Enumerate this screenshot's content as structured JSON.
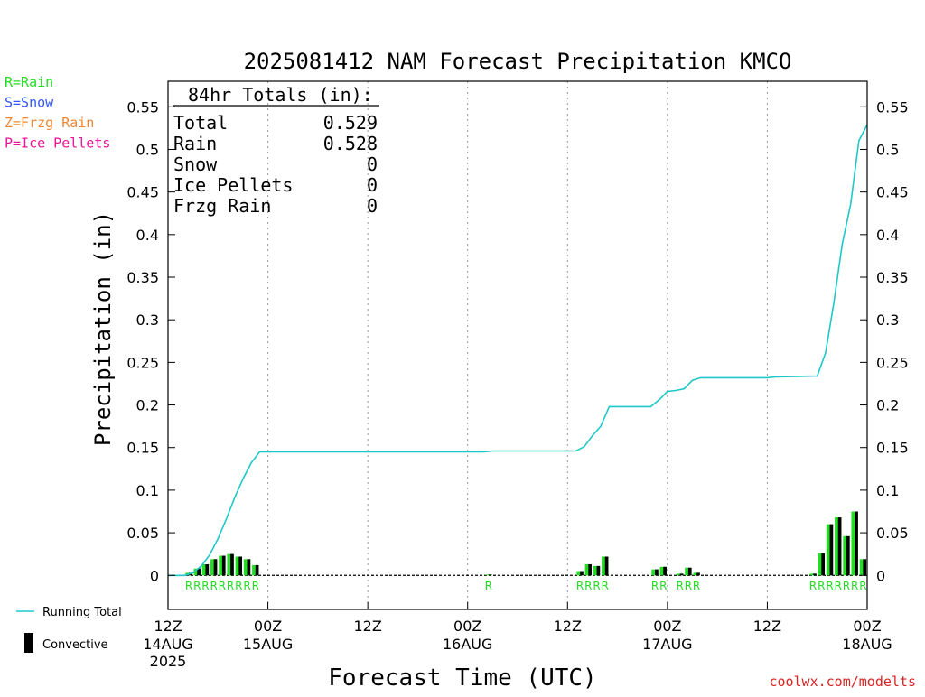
{
  "chart_data": {
    "type": "bar",
    "title": "2025081412 NAM Forecast Precipitation KMCO",
    "xlabel": "Forecast Time (UTC)",
    "ylabel": "Precipitation (in)",
    "ylim": [
      -0.04,
      0.58
    ],
    "y_ticks": [
      0,
      0.05,
      0.1,
      0.15,
      0.2,
      0.25,
      0.3,
      0.35,
      0.4,
      0.45,
      0.5,
      0.55
    ],
    "y_tick_labels": [
      "0",
      "0.05",
      "0.1",
      "0.15",
      "0.2",
      "0.25",
      "0.3",
      "0.35",
      "0.4",
      "0.45",
      "0.5",
      "0.55"
    ],
    "xlim_hours": [
      0,
      84
    ],
    "x_ticks": [
      {
        "hour": 0,
        "label": "12Z",
        "date": "14AUG",
        "year": "2025"
      },
      {
        "hour": 12,
        "label": "00Z",
        "date": "15AUG",
        "year": ""
      },
      {
        "hour": 24,
        "label": "12Z",
        "date": "",
        "year": ""
      },
      {
        "hour": 36,
        "label": "00Z",
        "date": "16AUG",
        "year": ""
      },
      {
        "hour": 48,
        "label": "12Z",
        "date": "",
        "year": ""
      },
      {
        "hour": 60,
        "label": "00Z",
        "date": "17AUG",
        "year": ""
      },
      {
        "hour": 72,
        "label": "12Z",
        "date": "",
        "year": ""
      },
      {
        "hour": 84,
        "label": "00Z",
        "date": "18AUG",
        "year": ""
      }
    ],
    "grid": "dotted vertical at tick hours",
    "bar_width_hours": 0.8,
    "hourly_precip": [
      {
        "hour": 3,
        "value": 0.003
      },
      {
        "hour": 4,
        "value": 0.008
      },
      {
        "hour": 5,
        "value": 0.013
      },
      {
        "hour": 6,
        "value": 0.019
      },
      {
        "hour": 7,
        "value": 0.023
      },
      {
        "hour": 8,
        "value": 0.025
      },
      {
        "hour": 9,
        "value": 0.022
      },
      {
        "hour": 10,
        "value": 0.019
      },
      {
        "hour": 11,
        "value": 0.012
      },
      {
        "hour": 39,
        "value": 0.001
      },
      {
        "hour": 50,
        "value": 0.005
      },
      {
        "hour": 51,
        "value": 0.013
      },
      {
        "hour": 52,
        "value": 0.011
      },
      {
        "hour": 53,
        "value": 0.022
      },
      {
        "hour": 59,
        "value": 0.007
      },
      {
        "hour": 60,
        "value": 0.01
      },
      {
        "hour": 62,
        "value": 0.002
      },
      {
        "hour": 63,
        "value": 0.009
      },
      {
        "hour": 64,
        "value": 0.003
      },
      {
        "hour": 78,
        "value": 0.002
      },
      {
        "hour": 79,
        "value": 0.026
      },
      {
        "hour": 80,
        "value": 0.06
      },
      {
        "hour": 81,
        "value": 0.068
      },
      {
        "hour": 82,
        "value": 0.046
      },
      {
        "hour": 83,
        "value": 0.075
      },
      {
        "hour": 84,
        "value": 0.019
      }
    ],
    "running_total": [
      {
        "hour": 0,
        "value": 0
      },
      {
        "hour": 2,
        "value": 0
      },
      {
        "hour": 3,
        "value": 0.003
      },
      {
        "hour": 4,
        "value": 0.011
      },
      {
        "hour": 5,
        "value": 0.024
      },
      {
        "hour": 6,
        "value": 0.043
      },
      {
        "hour": 7,
        "value": 0.066
      },
      {
        "hour": 8,
        "value": 0.091
      },
      {
        "hour": 9,
        "value": 0.113
      },
      {
        "hour": 10,
        "value": 0.132
      },
      {
        "hour": 11,
        "value": 0.145
      },
      {
        "hour": 38,
        "value": 0.145
      },
      {
        "hour": 39,
        "value": 0.146
      },
      {
        "hour": 49,
        "value": 0.146
      },
      {
        "hour": 50,
        "value": 0.151
      },
      {
        "hour": 51,
        "value": 0.164
      },
      {
        "hour": 52,
        "value": 0.175
      },
      {
        "hour": 53,
        "value": 0.198
      },
      {
        "hour": 58,
        "value": 0.198
      },
      {
        "hour": 59,
        "value": 0.206
      },
      {
        "hour": 60,
        "value": 0.216
      },
      {
        "hour": 61,
        "value": 0.217
      },
      {
        "hour": 62,
        "value": 0.219
      },
      {
        "hour": 63,
        "value": 0.229
      },
      {
        "hour": 64,
        "value": 0.232
      },
      {
        "hour": 72,
        "value": 0.232
      },
      {
        "hour": 73,
        "value": 0.233
      },
      {
        "hour": 78,
        "value": 0.234
      },
      {
        "hour": 79,
        "value": 0.261
      },
      {
        "hour": 80,
        "value": 0.32
      },
      {
        "hour": 81,
        "value": 0.389
      },
      {
        "hour": 82,
        "value": 0.435
      },
      {
        "hour": 83,
        "value": 0.51
      },
      {
        "hour": 84,
        "value": 0.529
      }
    ],
    "ptype_markers": [
      {
        "hour": 3,
        "type": "R"
      },
      {
        "hour": 4,
        "type": "R"
      },
      {
        "hour": 5,
        "type": "R"
      },
      {
        "hour": 6,
        "type": "R"
      },
      {
        "hour": 7,
        "type": "R"
      },
      {
        "hour": 8,
        "type": "R"
      },
      {
        "hour": 9,
        "type": "R"
      },
      {
        "hour": 10,
        "type": "R"
      },
      {
        "hour": 11,
        "type": "R"
      },
      {
        "hour": 39,
        "type": "R"
      },
      {
        "hour": 50,
        "type": "R"
      },
      {
        "hour": 51,
        "type": "R"
      },
      {
        "hour": 52,
        "type": "R"
      },
      {
        "hour": 53,
        "type": "R"
      },
      {
        "hour": 59,
        "type": "R"
      },
      {
        "hour": 60,
        "type": "R"
      },
      {
        "hour": 62,
        "type": "R"
      },
      {
        "hour": 63,
        "type": "R"
      },
      {
        "hour": 64,
        "type": "R"
      },
      {
        "hour": 78,
        "type": "R"
      },
      {
        "hour": 79,
        "type": "R"
      },
      {
        "hour": 80,
        "type": "R"
      },
      {
        "hour": 81,
        "type": "R"
      },
      {
        "hour": 82,
        "type": "R"
      },
      {
        "hour": 83,
        "type": "R"
      },
      {
        "hour": 84,
        "type": "R"
      }
    ],
    "totals_box": {
      "header": "84hr Totals (in):",
      "rows": [
        {
          "label": "Total",
          "value": "0.529"
        },
        {
          "label": "Rain",
          "value": "0.528"
        },
        {
          "label": "Snow",
          "value": "0"
        },
        {
          "label": "Ice Pellets",
          "value": "0"
        },
        {
          "label": "Frzg Rain",
          "value": "0"
        }
      ]
    },
    "ptype_legend": [
      {
        "text": "R=Rain",
        "color": "#22dd22"
      },
      {
        "text": "S=Snow",
        "color": "#3355ff"
      },
      {
        "text": "Z=Frzg Rain",
        "color": "#ee8833"
      },
      {
        "text": "P=Ice Pellets",
        "color": "#ee1199"
      }
    ],
    "series_legend": [
      {
        "name": "Running Total",
        "color": "#1ec8c8"
      },
      {
        "name": "Convective",
        "color": "#000000"
      }
    ],
    "credit": "coolwx.com/modelts",
    "colors": {
      "bar": "#22dd22",
      "convective": "#000000",
      "running_total": "#1ec8c8",
      "marker": "#22dd22",
      "credit": "#dd2222"
    }
  }
}
